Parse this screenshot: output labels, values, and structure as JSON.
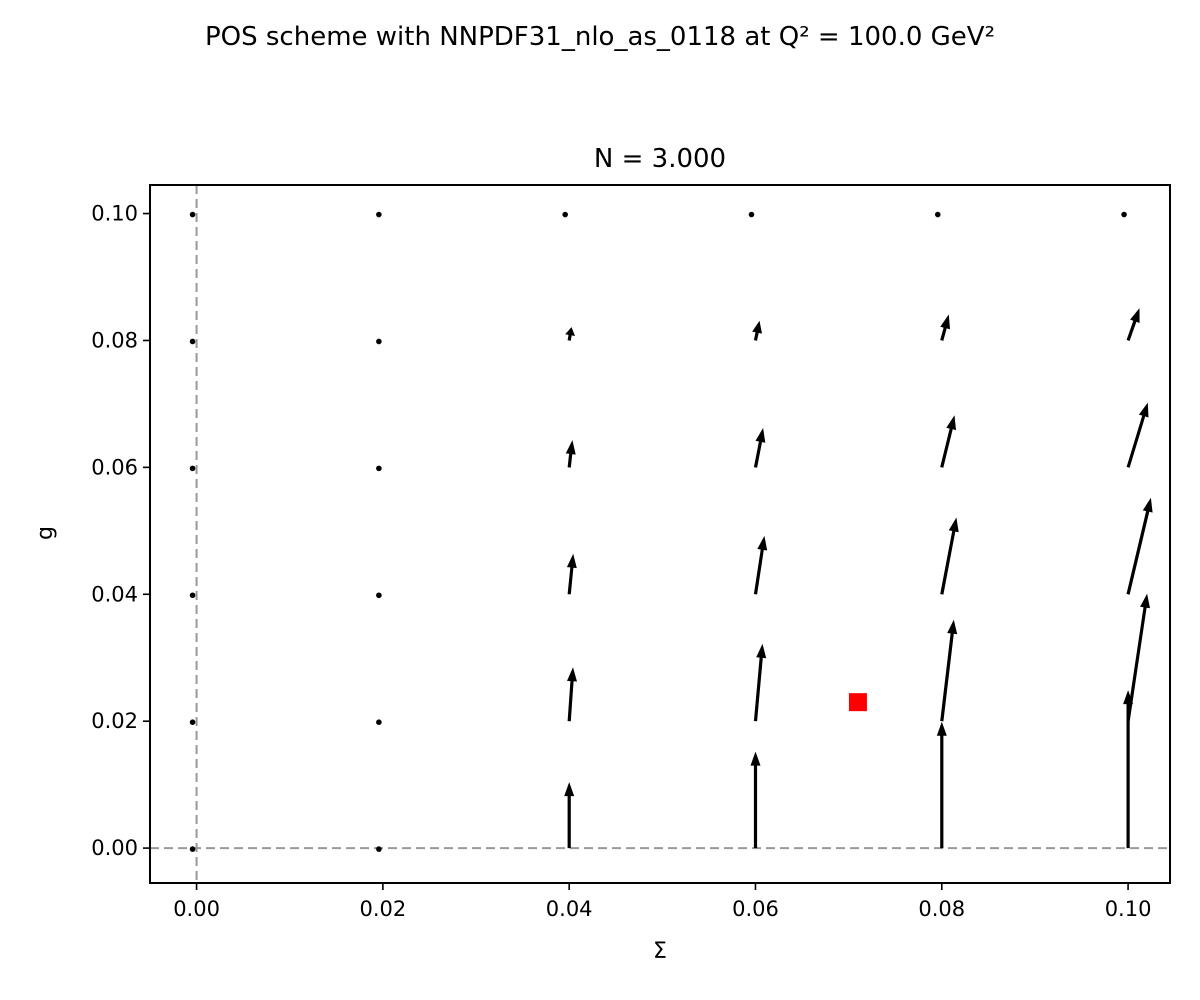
{
  "chart_data": {
    "type": "quiver",
    "suptitle": "POS scheme with NNPDF31_nlo_as_0118 at Q² = 100.0 GeV²",
    "title": "N = 3.000",
    "xlabel": "Σ",
    "ylabel": "g",
    "xlim": [
      -0.005,
      0.1045
    ],
    "ylim": [
      -0.0055,
      0.1045
    ],
    "xticks": [
      0.0,
      0.02,
      0.04,
      0.06,
      0.08,
      0.1
    ],
    "xtick_labels": [
      "0.00",
      "0.02",
      "0.04",
      "0.06",
      "0.08",
      "0.10"
    ],
    "yticks": [
      0.0,
      0.02,
      0.04,
      0.06,
      0.08,
      0.1
    ],
    "ytick_labels": [
      "0.00",
      "0.02",
      "0.04",
      "0.06",
      "0.08",
      "0.10"
    ],
    "reference_lines": [
      {
        "orientation": "vertical",
        "value": 0.0,
        "style": "dashed",
        "color": "#999999"
      },
      {
        "orientation": "horizontal",
        "value": 0.0,
        "style": "dashed",
        "color": "#999999"
      }
    ],
    "grid_x": [
      0.0,
      0.02,
      0.04,
      0.06,
      0.08,
      0.1
    ],
    "grid_y": [
      0.0,
      0.02,
      0.04,
      0.06,
      0.08,
      0.1
    ],
    "vectors": [
      [
        [
          0.0,
          0.0
        ],
        [
          0.0,
          0.0
        ],
        [
          0.0,
          0.0
        ],
        [
          0.0,
          0.0
        ],
        [
          0.0,
          0.0
        ],
        [
          0.0,
          0.0
        ]
      ],
      [
        [
          0.0,
          0.0
        ],
        [
          0.0,
          0.0
        ],
        [
          0.00036,
          0.0021
        ],
        [
          0.00064,
          0.0031
        ],
        [
          0.0011,
          0.0041
        ],
        [
          0.0018,
          0.0051
        ]
      ],
      [
        [
          0.0,
          0.0
        ],
        [
          0.0,
          0.0
        ],
        [
          0.0005,
          0.0043
        ],
        [
          0.0012,
          0.0062
        ],
        [
          0.002,
          0.0082
        ],
        [
          0.0031,
          0.0102
        ]
      ],
      [
        [
          0.0,
          0.0
        ],
        [
          0.0,
          0.0
        ],
        [
          0.00064,
          0.0064
        ],
        [
          0.0014,
          0.0092
        ],
        [
          0.0023,
          0.0121
        ],
        [
          0.0036,
          0.0152
        ]
      ],
      [
        [
          0.0,
          0.0
        ],
        [
          0.0,
          0.0
        ],
        [
          0.0006,
          0.0085
        ],
        [
          0.0011,
          0.0122
        ],
        [
          0.0019,
          0.016
        ],
        [
          0.003,
          0.0201
        ]
      ],
      [
        [
          0.0,
          0.0
        ],
        [
          0.0,
          0.0
        ],
        [
          0.0,
          0.0104
        ],
        [
          0.0,
          0.0152
        ],
        [
          0.0,
          0.0199
        ],
        [
          0.0,
          0.0249
        ]
      ]
    ],
    "vectors_note": "vectors[row][col] = [dΣ, dg] at (grid_x[col], grid_y[5-row]) in data units",
    "point_marker": {
      "x": 0.071,
      "y": 0.023,
      "shape": "square",
      "color": "#ff0000"
    }
  }
}
